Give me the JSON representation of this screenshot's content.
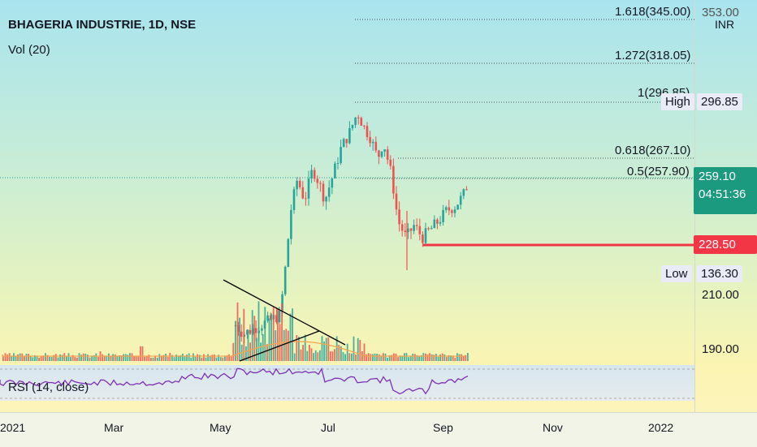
{
  "header": {
    "title": "BHAGERIA INDUSTRIE, 1D, NSE",
    "volume_label": "Vol (20)",
    "currency": "INR"
  },
  "rsi": {
    "label": "RSI (14, close)"
  },
  "price_axis": {
    "ticks": [
      "353.00",
      "296.85",
      "210.00",
      "190.00"
    ],
    "current_price": "259.10",
    "countdown": "04:51:36",
    "support_price": "228.50",
    "high_label": "High",
    "high_value": "296.85",
    "low_label": "Low",
    "low_value": "136.30"
  },
  "fib_levels": [
    {
      "label": "1.618(345.00)"
    },
    {
      "label": "1.272(318.05)"
    },
    {
      "label": "1(296.85)"
    },
    {
      "label": "0.618(267.10)"
    },
    {
      "label": "0.5(257.90)"
    }
  ],
  "time_axis": [
    "2021",
    "Mar",
    "May",
    "Jul",
    "Sep",
    "Nov",
    "2022"
  ],
  "colors": {
    "up": "#26a69a",
    "down": "#ef5350",
    "support": "#f23645",
    "rsi": "#7e2fb5",
    "vol_ma": "#f7a44f",
    "current_box": "#1b9a80"
  },
  "chart_data": {
    "type": "candlestick",
    "title": "BHAGERIA INDUSTRIE, 1D, NSE",
    "ohlc_approx": [
      {
        "period": "early May",
        "close": 165
      },
      {
        "period": "mid Jun",
        "close": 250
      },
      {
        "period": "late Jul",
        "close": 296.85
      },
      {
        "period": "late Aug",
        "close": 229
      },
      {
        "period": "mid Sep",
        "close": 259.1
      }
    ],
    "high": 296.85,
    "low": 136.3,
    "last": 259.1,
    "support_level": 228.5
  }
}
